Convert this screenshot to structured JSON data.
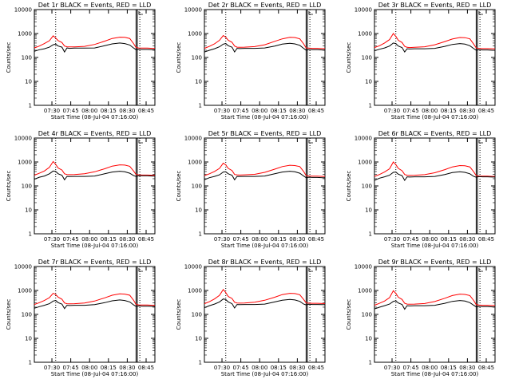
{
  "colors": {
    "events": "#000000",
    "lld": "#ff0000",
    "background": "#ffffff"
  },
  "chart_data": {
    "type": "line",
    "layout": "3x3 grid",
    "shared": {
      "xlabel": "Start Time (08-Jul-04 07:16:00)",
      "ylabel": "Counts/sec",
      "yscale": "log",
      "ylim": [
        1,
        10000
      ],
      "yticks": [
        {
          "value": 1,
          "label": "1"
        },
        {
          "value": 10,
          "label": "10"
        },
        {
          "value": 100,
          "label": "100"
        },
        {
          "value": 1000,
          "label": "1000"
        },
        {
          "value": 10000,
          "label": "10000"
        }
      ],
      "xrange_minutes": [
        0,
        96
      ],
      "xticks": [
        {
          "value": 14,
          "label": "07:30"
        },
        {
          "value": 29,
          "label": "07:45"
        },
        {
          "value": 44,
          "label": "08:00"
        },
        {
          "value": 59,
          "label": "08:15"
        },
        {
          "value": 74,
          "label": "08:30"
        },
        {
          "value": 89,
          "label": "08:45"
        }
      ],
      "vlines_dotted": [
        17,
        84
      ],
      "vlines_solid": [
        81,
        82
      ],
      "x": [
        0,
        4,
        8,
        12,
        15,
        17,
        19,
        22,
        24,
        26,
        28,
        32,
        40,
        48,
        56,
        62,
        68,
        72,
        76,
        79,
        81,
        83,
        86,
        90,
        94,
        96
      ],
      "series_names": [
        "Events",
        "LLD"
      ]
    },
    "panels": [
      {
        "title": "Det 1r BLACK = Events, RED = LLD",
        "events": [
          180,
          210,
          230,
          270,
          340,
          360,
          300,
          270,
          170,
          250,
          240,
          245,
          245,
          250,
          310,
          370,
          400,
          380,
          330,
          250,
          210,
          220,
          215,
          215,
          210,
          210
        ],
        "lld": [
          250,
          300,
          380,
          500,
          800,
          650,
          500,
          420,
          300,
          280,
          275,
          275,
          290,
          350,
          480,
          620,
          700,
          690,
          620,
          380,
          260,
          250,
          245,
          245,
          240,
          240
        ]
      },
      {
        "title": "Det 2r BLACK = Events, RED = LLD",
        "events": [
          170,
          200,
          230,
          280,
          360,
          380,
          310,
          270,
          170,
          240,
          235,
          240,
          240,
          250,
          300,
          360,
          390,
          370,
          320,
          240,
          200,
          215,
          210,
          210,
          205,
          205
        ],
        "lld": [
          240,
          290,
          370,
          520,
          820,
          700,
          520,
          430,
          300,
          270,
          265,
          270,
          285,
          340,
          470,
          600,
          690,
          680,
          600,
          370,
          250,
          245,
          240,
          240,
          235,
          235
        ]
      },
      {
        "title": "Det 3r BLACK = Events, RED = LLD",
        "events": [
          190,
          220,
          250,
          300,
          400,
          380,
          300,
          260,
          170,
          230,
          225,
          230,
          230,
          240,
          290,
          350,
          380,
          360,
          310,
          235,
          200,
          210,
          205,
          205,
          200,
          200
        ],
        "lld": [
          260,
          310,
          400,
          560,
          1000,
          760,
          520,
          420,
          290,
          265,
          260,
          265,
          280,
          340,
          460,
          590,
          680,
          670,
          600,
          360,
          250,
          240,
          235,
          235,
          230,
          230
        ]
      },
      {
        "title": "Det 4r BLACK = Events, RED = LLD",
        "events": [
          190,
          230,
          260,
          320,
          420,
          400,
          320,
          280,
          180,
          250,
          245,
          250,
          250,
          260,
          320,
          380,
          410,
          390,
          340,
          270,
          250,
          270,
          265,
          265,
          260,
          260
        ],
        "lld": [
          280,
          340,
          420,
          600,
          1050,
          800,
          560,
          460,
          320,
          300,
          295,
          300,
          320,
          390,
          520,
          670,
          760,
          740,
          660,
          420,
          300,
          290,
          285,
          285,
          280,
          280
        ]
      },
      {
        "title": "Det 5r BLACK = Events, RED = LLD",
        "events": [
          180,
          220,
          250,
          290,
          380,
          390,
          320,
          280,
          180,
          250,
          245,
          250,
          250,
          260,
          320,
          380,
          410,
          390,
          340,
          260,
          220,
          230,
          225,
          225,
          220,
          220
        ],
        "lld": [
          270,
          320,
          400,
          540,
          900,
          760,
          540,
          440,
          300,
          290,
          285,
          290,
          305,
          370,
          500,
          640,
          730,
          710,
          640,
          400,
          270,
          260,
          255,
          255,
          250,
          250
        ]
      },
      {
        "title": "Det 6r BLACK = Events, RED = LLD",
        "events": [
          170,
          210,
          240,
          280,
          370,
          380,
          310,
          270,
          170,
          240,
          235,
          240,
          240,
          250,
          300,
          360,
          390,
          370,
          320,
          250,
          230,
          245,
          240,
          240,
          235,
          235
        ],
        "lld": [
          250,
          300,
          380,
          520,
          1000,
          780,
          540,
          430,
          300,
          280,
          275,
          280,
          295,
          355,
          480,
          620,
          710,
          690,
          620,
          390,
          270,
          260,
          255,
          255,
          250,
          250
        ]
      },
      {
        "title": "Det 7r BLACK = Events, RED = LLD",
        "events": [
          180,
          210,
          240,
          280,
          360,
          380,
          310,
          270,
          175,
          240,
          235,
          240,
          240,
          255,
          310,
          370,
          400,
          380,
          330,
          250,
          215,
          225,
          220,
          220,
          215,
          215
        ],
        "lld": [
          260,
          310,
          380,
          500,
          760,
          680,
          520,
          430,
          300,
          280,
          275,
          280,
          300,
          360,
          490,
          630,
          720,
          700,
          630,
          390,
          260,
          250,
          245,
          245,
          240,
          240
        ]
      },
      {
        "title": "Det 8r BLACK = Events, RED = LLD",
        "events": [
          190,
          230,
          270,
          330,
          440,
          420,
          330,
          280,
          185,
          260,
          255,
          260,
          260,
          270,
          330,
          390,
          420,
          400,
          350,
          270,
          250,
          265,
          260,
          260,
          255,
          255
        ],
        "lld": [
          280,
          340,
          440,
          620,
          1100,
          820,
          560,
          460,
          320,
          300,
          295,
          300,
          320,
          390,
          520,
          670,
          760,
          740,
          660,
          420,
          300,
          295,
          290,
          290,
          285,
          285
        ]
      },
      {
        "title": "Det 9r BLACK = Events, RED = LLD",
        "events": [
          170,
          200,
          230,
          270,
          350,
          370,
          300,
          260,
          165,
          230,
          225,
          230,
          230,
          240,
          290,
          350,
          380,
          360,
          310,
          240,
          205,
          215,
          210,
          210,
          205,
          205
        ],
        "lld": [
          240,
          290,
          360,
          500,
          980,
          760,
          520,
          420,
          290,
          270,
          265,
          270,
          285,
          345,
          470,
          610,
          700,
          680,
          610,
          380,
          255,
          245,
          240,
          240,
          235,
          235
        ]
      }
    ]
  }
}
